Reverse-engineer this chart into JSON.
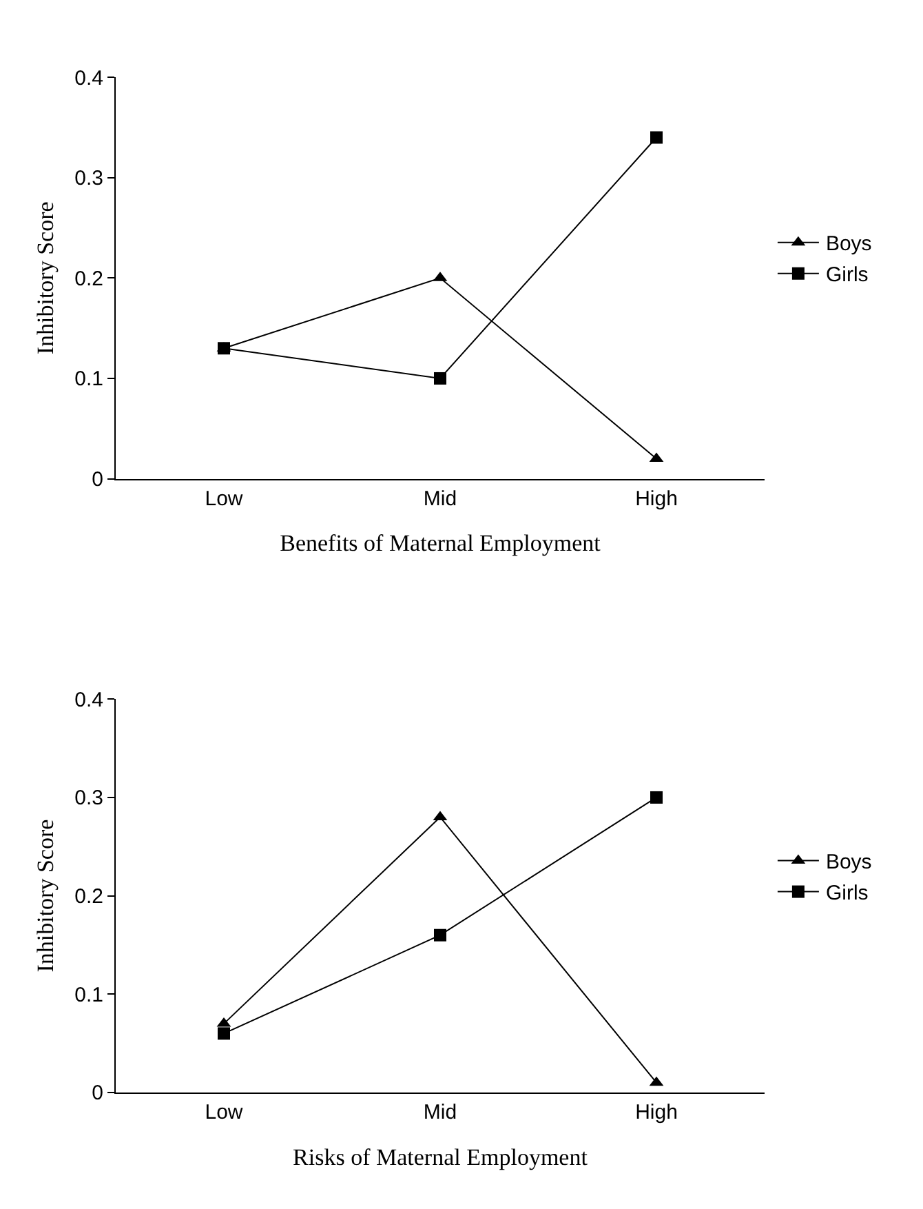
{
  "chart_data": [
    {
      "type": "line",
      "categories": [
        "Low",
        "Mid",
        "High"
      ],
      "xlabel": "Benefits of Maternal Employment",
      "ylabel": "Inhibitory Score",
      "ylim": [
        0,
        0.4
      ],
      "yticks": [
        {
          "value": 0,
          "label": "0"
        },
        0.1,
        0.2,
        0.3,
        0.4
      ],
      "legend": "right",
      "grid": false,
      "line_style": "solid",
      "series": [
        {
          "name": "Boys",
          "color": "#000000",
          "marker": "triangle",
          "values": [
            0.13,
            0.2,
            0.02
          ]
        },
        {
          "name": "Girls",
          "color": "#000000",
          "marker": "square",
          "values": [
            0.13,
            0.1,
            0.34
          ]
        }
      ]
    },
    {
      "type": "line",
      "categories": [
        "Low",
        "Mid",
        "High"
      ],
      "xlabel": "Risks of Maternal Employment",
      "ylabel": "Inhibitory Score",
      "ylim": [
        0,
        0.4
      ],
      "yticks": [
        {
          "value": 0,
          "label": "0"
        },
        0.1,
        0.2,
        0.3,
        0.4
      ],
      "legend": "right",
      "grid": false,
      "line_style": "solid",
      "series": [
        {
          "name": "Boys",
          "color": "#000000",
          "marker": "triangle",
          "values": [
            0.07,
            0.28,
            0.01
          ]
        },
        {
          "name": "Girls",
          "color": "#000000",
          "marker": "square",
          "values": [
            0.06,
            0.16,
            0.3
          ]
        }
      ]
    }
  ]
}
